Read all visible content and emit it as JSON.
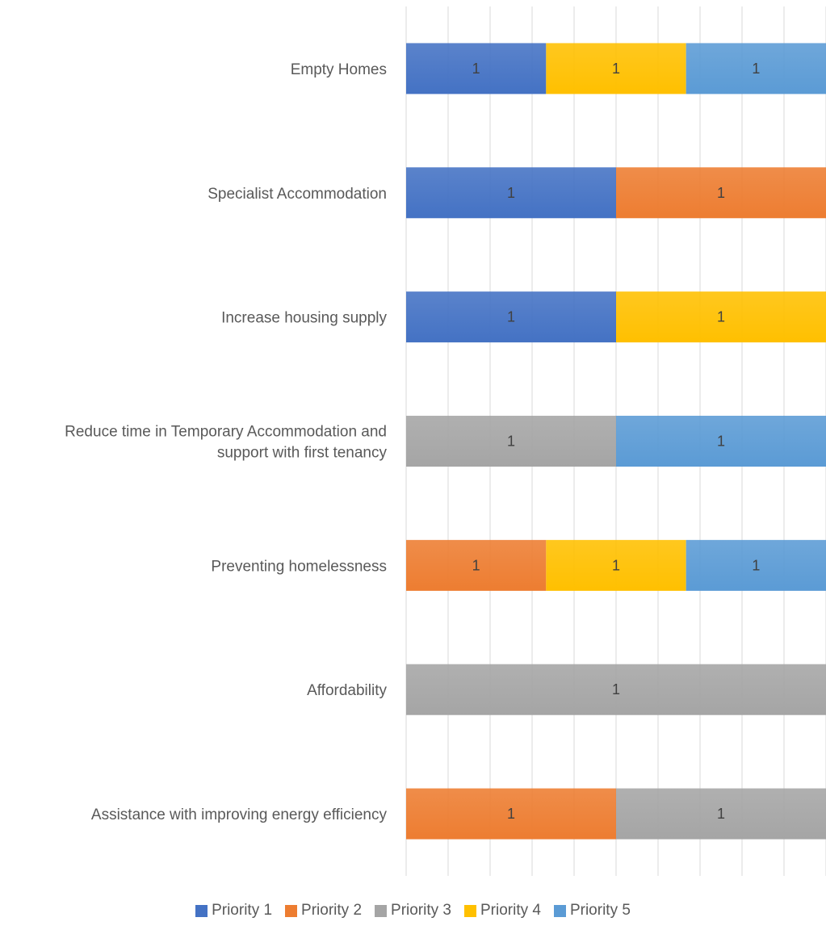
{
  "chart_data": {
    "type": "bar",
    "orientation": "horizontal",
    "stacked": "percent",
    "categories": [
      "Empty Homes",
      "Specialist Accommodation",
      "Increase housing supply",
      "Reduce time in Temporary Accommodation and support with first tenancy",
      "Preventing homelessness",
      "Affordability",
      "Assistance with improving energy efficiency"
    ],
    "series": [
      {
        "name": "Priority 1",
        "color": "#4472C4",
        "values": [
          1,
          1,
          1,
          null,
          null,
          null,
          null
        ]
      },
      {
        "name": "Priority 2",
        "color": "#ED7D31",
        "values": [
          null,
          1,
          null,
          null,
          1,
          null,
          1
        ]
      },
      {
        "name": "Priority 3",
        "color": "#A5A5A5",
        "values": [
          null,
          null,
          null,
          1,
          null,
          1,
          1
        ]
      },
      {
        "name": "Priority 4",
        "color": "#FFC000",
        "values": [
          1,
          null,
          1,
          null,
          1,
          null,
          null
        ]
      },
      {
        "name": "Priority 5",
        "color": "#5B9BD5",
        "values": [
          1,
          null,
          null,
          1,
          1,
          null,
          null
        ]
      }
    ],
    "grid": true,
    "legend": "bottom"
  }
}
